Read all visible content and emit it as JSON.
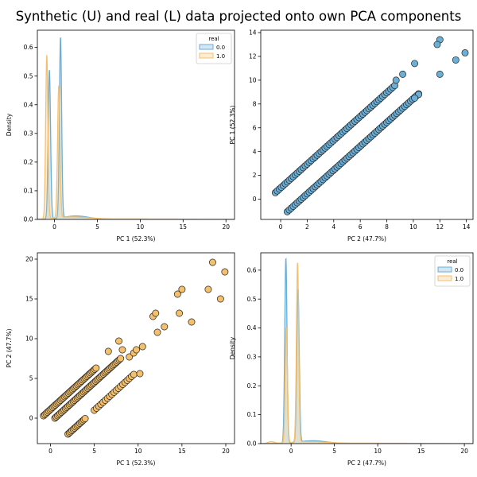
{
  "title": "Synthetic (U) and real (L) data projected onto own PCA components",
  "colors": {
    "blue": "#6baed6",
    "orange": "#f4c06c",
    "gray": "#7f7f7f"
  },
  "chart_data": [
    {
      "id": "ax1",
      "type": "area",
      "subtype": "kde",
      "xlabel": "PC 1 (52.3%)",
      "ylabel": "Density",
      "xlim": [
        -2,
        21
      ],
      "ylim": [
        0,
        0.66
      ],
      "xticks": [
        0,
        5,
        10,
        15,
        20
      ],
      "yticks": [
        0.0,
        0.1,
        0.2,
        0.3,
        0.4,
        0.5,
        0.6
      ],
      "ytick_labels": [
        "0.0",
        "0.1",
        "0.2",
        "0.3",
        "0.4",
        "0.5",
        "0.6"
      ],
      "legend": {
        "title": "real",
        "position": "top-right",
        "entries": [
          "0.0",
          "1.0"
        ]
      },
      "series": [
        {
          "name": "0.0",
          "color": "blue",
          "peaks": [
            [
              -0.6,
              0.52,
              0.14
            ],
            [
              0.7,
              0.63,
              0.13
            ]
          ],
          "tail": [
            [
              2.5,
              0.012,
              1.5
            ]
          ]
        },
        {
          "name": "1.0",
          "color": "orange",
          "peaks": [
            [
              -0.9,
              0.57,
              0.13
            ],
            [
              0.5,
              0.46,
              0.14
            ]
          ],
          "tail": [
            [
              2.0,
              0.008,
              2.0
            ],
            [
              10,
              0.0015,
              6
            ]
          ]
        }
      ]
    },
    {
      "id": "ax2",
      "type": "scatter",
      "xlabel": "PC 2 (47.7%)",
      "ylabel": "PC 1 (52.3%)",
      "xlim": [
        -1.5,
        14.5
      ],
      "ylim": [
        -1.7,
        14.2
      ],
      "xticks": [
        0,
        2,
        4,
        6,
        8,
        10,
        12,
        14
      ],
      "yticks": [
        0,
        2,
        4,
        6,
        8,
        10,
        12,
        14
      ],
      "color": "blue",
      "lines": [
        {
          "x_start": -0.4,
          "x_end": 8.7,
          "intercept": 0.95,
          "step": 0.15
        },
        {
          "x_start": 0.5,
          "x_end": 10.5,
          "intercept": -1.55,
          "step": 0.15
        }
      ],
      "extra_points": [
        [
          12.0,
          13.4
        ],
        [
          11.8,
          13.0
        ],
        [
          13.9,
          12.3
        ],
        [
          13.2,
          11.7
        ],
        [
          10.1,
          11.4
        ],
        [
          12.0,
          10.5
        ],
        [
          10.4,
          8.8
        ],
        [
          10.1,
          8.5
        ],
        [
          9.2,
          10.5
        ],
        [
          8.7,
          10.0
        ]
      ]
    },
    {
      "id": "ax3",
      "type": "scatter",
      "xlabel": "PC 1 (52.3%)",
      "ylabel": "PC 2 (47.7%)",
      "xlim": [
        -1.5,
        21
      ],
      "ylim": [
        -3.2,
        20.8
      ],
      "xticks": [
        0,
        5,
        10,
        15,
        20
      ],
      "yticks": [
        0,
        5,
        10,
        15,
        20
      ],
      "color": "orange",
      "lines": [
        {
          "x_start": -0.8,
          "x_end": 5.3,
          "intercept": 1.1,
          "step": 0.15
        },
        {
          "x_start": 0.5,
          "x_end": 8.0,
          "intercept": -0.5,
          "step": 0.15
        },
        {
          "x_start": 2.0,
          "x_end": 4.0,
          "intercept": -4.0,
          "step": 0.15
        },
        {
          "x_start": 5.0,
          "x_end": 9.5,
          "intercept": -4.0,
          "step": 0.25
        }
      ],
      "extra_points": [
        [
          8.2,
          8.6
        ],
        [
          9.0,
          7.7
        ],
        [
          9.5,
          8.2
        ],
        [
          9.8,
          8.6
        ],
        [
          10.5,
          9.0
        ],
        [
          10.2,
          5.6
        ],
        [
          11.7,
          12.8
        ],
        [
          12.0,
          13.2
        ],
        [
          12.2,
          10.8
        ],
        [
          13.0,
          11.5
        ],
        [
          14.5,
          15.6
        ],
        [
          14.7,
          13.2
        ],
        [
          15.0,
          16.2
        ],
        [
          16.1,
          12.1
        ],
        [
          18.0,
          16.2
        ],
        [
          18.5,
          19.6
        ],
        [
          19.4,
          15.0
        ],
        [
          19.9,
          18.4
        ],
        [
          6.6,
          8.4
        ],
        [
          7.8,
          9.7
        ]
      ]
    },
    {
      "id": "ax4",
      "type": "area",
      "subtype": "kde",
      "xlabel": "PC 2 (47.7%)",
      "ylabel": "Density",
      "xlim": [
        -3.5,
        21
      ],
      "ylim": [
        0,
        0.66
      ],
      "xticks": [
        0,
        5,
        10,
        15,
        20
      ],
      "yticks": [
        0.0,
        0.1,
        0.2,
        0.3,
        0.4,
        0.5,
        0.6
      ],
      "ytick_labels": [
        "0.0",
        "0.1",
        "0.2",
        "0.3",
        "0.4",
        "0.5",
        "0.6"
      ],
      "legend": {
        "title": "real",
        "position": "top-right",
        "entries": [
          "0.0",
          "1.0"
        ]
      },
      "series": [
        {
          "name": "0.0",
          "color": "blue",
          "peaks": [
            [
              -0.6,
              0.64,
              0.13
            ],
            [
              0.8,
              0.53,
              0.14
            ]
          ],
          "tail": [
            [
              2.5,
              0.01,
              1.6
            ]
          ]
        },
        {
          "name": "1.0",
          "color": "orange",
          "peaks": [
            [
              -0.55,
              0.4,
              0.13
            ],
            [
              0.75,
              0.62,
              0.13
            ],
            [
              -2.3,
              0.006,
              0.35
            ]
          ],
          "tail": [
            [
              2.0,
              0.006,
              2.0
            ],
            [
              9,
              0.0015,
              6
            ]
          ]
        }
      ]
    }
  ]
}
